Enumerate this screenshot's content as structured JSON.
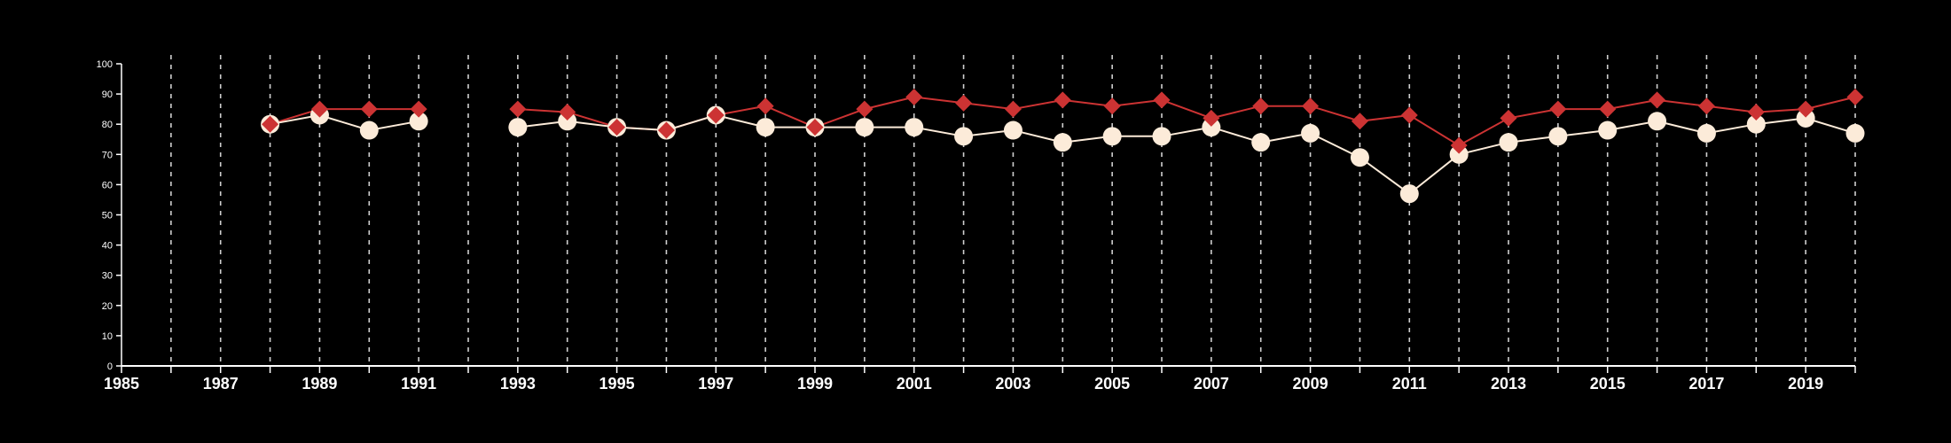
{
  "chart_data": {
    "type": "line",
    "title": "",
    "xlabel": "",
    "ylabel": "",
    "xlim": [
      1985,
      2020
    ],
    "ylim": [
      0,
      100
    ],
    "x_tick_labels": [
      "1985",
      "1987",
      "1989",
      "1991",
      "1993",
      "1995",
      "1997",
      "1999",
      "2001",
      "2003",
      "2005",
      "2007",
      "2009",
      "2011",
      "2013",
      "2015",
      "2017",
      "2019"
    ],
    "y_tick_labels": [
      "0",
      "10",
      "20",
      "30",
      "40",
      "50",
      "60",
      "70",
      "80",
      "90",
      "100"
    ],
    "grid": {
      "vertical": true,
      "style": "dashed"
    },
    "colors": {
      "background": "#000000",
      "axis": "#ffffff",
      "grid": "#cfcfcf",
      "series_red": "#cc3333",
      "series_cream": "#fcebd9"
    },
    "series": [
      {
        "marker": "diamond",
        "color": "#cc3333",
        "points": [
          [
            1988,
            80
          ],
          [
            1989,
            85
          ],
          [
            1990,
            85
          ],
          [
            1991,
            85
          ],
          [
            1993,
            85
          ],
          [
            1994,
            84
          ],
          [
            1995,
            79
          ],
          [
            1996,
            78
          ],
          [
            1997,
            83
          ],
          [
            1998,
            86
          ],
          [
            1999,
            79
          ],
          [
            2000,
            85
          ],
          [
            2001,
            89
          ],
          [
            2002,
            87
          ],
          [
            2003,
            85
          ],
          [
            2004,
            88
          ],
          [
            2005,
            86
          ],
          [
            2006,
            88
          ],
          [
            2007,
            82
          ],
          [
            2008,
            86
          ],
          [
            2009,
            86
          ],
          [
            2010,
            81
          ],
          [
            2011,
            83
          ],
          [
            2012,
            73
          ],
          [
            2013,
            82
          ],
          [
            2014,
            85
          ],
          [
            2015,
            85
          ],
          [
            2016,
            88
          ],
          [
            2017,
            86
          ],
          [
            2018,
            84
          ],
          [
            2019,
            85
          ],
          [
            2020,
            89
          ]
        ]
      },
      {
        "marker": "circle",
        "color": "#fcebd9",
        "points": [
          [
            1988,
            80
          ],
          [
            1989,
            83
          ],
          [
            1990,
            78
          ],
          [
            1991,
            81
          ],
          [
            1993,
            79
          ],
          [
            1994,
            81
          ],
          [
            1995,
            79
          ],
          [
            1996,
            78
          ],
          [
            1997,
            83
          ],
          [
            1998,
            79
          ],
          [
            1999,
            79
          ],
          [
            2000,
            79
          ],
          [
            2001,
            79
          ],
          [
            2002,
            76
          ],
          [
            2003,
            78
          ],
          [
            2004,
            74
          ],
          [
            2005,
            76
          ],
          [
            2006,
            76
          ],
          [
            2007,
            79
          ],
          [
            2008,
            74
          ],
          [
            2009,
            77
          ],
          [
            2010,
            69
          ],
          [
            2011,
            57
          ],
          [
            2012,
            70
          ],
          [
            2013,
            74
          ],
          [
            2014,
            76
          ],
          [
            2015,
            78
          ],
          [
            2016,
            81
          ],
          [
            2017,
            77
          ],
          [
            2018,
            80
          ],
          [
            2019,
            82
          ],
          [
            2020,
            77
          ]
        ]
      }
    ]
  }
}
